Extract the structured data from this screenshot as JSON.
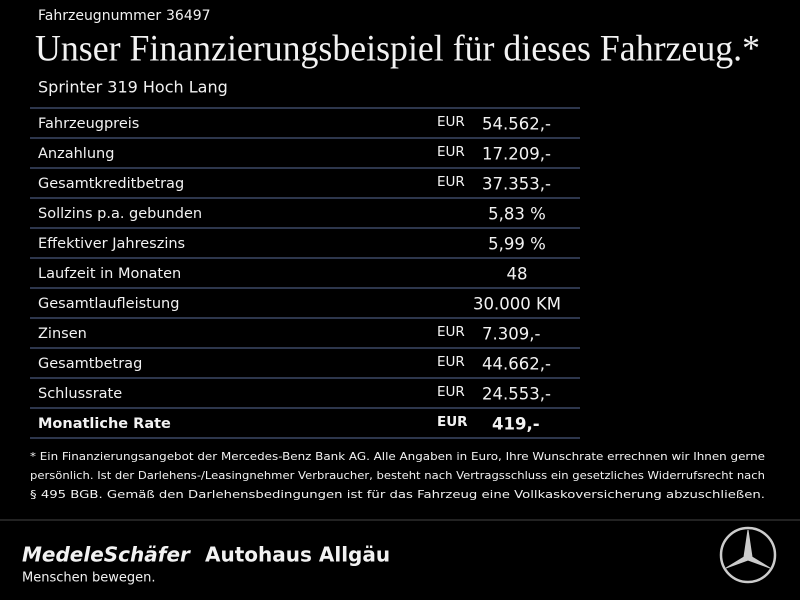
{
  "header": {
    "vehicle_number_label": "Fahrzeugnummer",
    "vehicle_number": "36497",
    "title": "Unser Finanzierungsbeispiel für dieses Fahrzeug.*",
    "model": "Sprinter 319 Hoch Lang"
  },
  "table": {
    "rows": [
      {
        "label": "Fahrzeugpreis",
        "currency": "EUR",
        "value": "54.562,-"
      },
      {
        "label": "Anzahlung",
        "currency": "EUR",
        "value": "17.209,-"
      },
      {
        "label": "Gesamtkreditbetrag",
        "currency": "EUR",
        "value": "37.353,-"
      },
      {
        "label": "Sollzins p.a. gebunden",
        "value": "5,83 %"
      },
      {
        "label": "Effektiver Jahreszins",
        "value": "5,99 %"
      },
      {
        "label": "Laufzeit in Monaten",
        "value": "48"
      },
      {
        "label": "Gesamtlaufleistung",
        "value": "30.000 KM"
      },
      {
        "label": "Zinsen",
        "currency": "EUR",
        "value": "7.309,-"
      },
      {
        "label": "Gesamtbetrag",
        "currency": "EUR",
        "value": "44.662,-"
      },
      {
        "label": "Schlussrate",
        "currency": "EUR",
        "value": "24.553,-"
      },
      {
        "label": "Monatliche Rate",
        "currency": "EUR",
        "value": "419,-",
        "bold": true
      }
    ]
  },
  "footnote": {
    "lines": [
      "* Ein Finanzierungsangebot der Mercedes-Benz Bank AG. Alle Angaben in Euro, Ihre Wunschrate errechnen wir Ihnen gerne",
      "persönlich. Ist der Darlehens-/Leasingnehmer Verbraucher, besteht nach Vertragsschluss ein gesetzliches Widerrufsrecht nach",
      "§ 495 BGB. Gemäß den Darlehensbedingungen ist für das Fahrzeug eine Vollkaskoversicherung abzuschließen."
    ]
  },
  "footer": {
    "dealer": "MedeleSchäfer",
    "slogan": "Menschen bewegen.",
    "dealer2": "Autohaus Allgäu"
  }
}
